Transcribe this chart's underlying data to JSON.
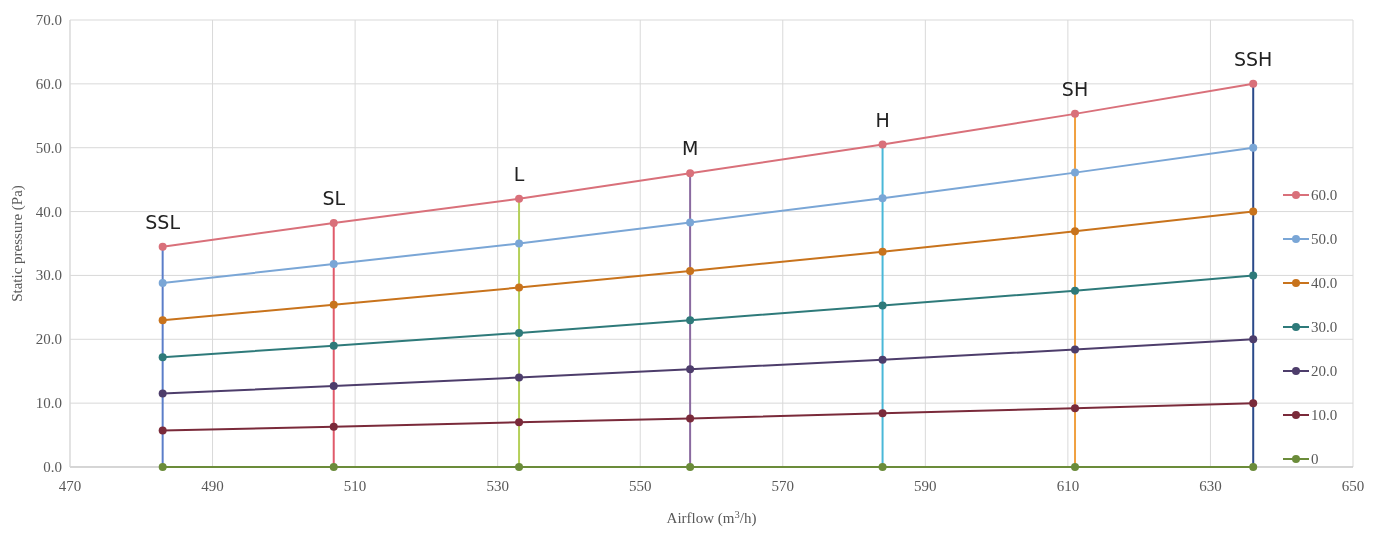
{
  "chart_data": {
    "type": "line",
    "xlabel": "Airflow (m$^{3}$/h)",
    "ylabel": "Static pressure (Pa)",
    "x": [
      483,
      507,
      533,
      557,
      584,
      611,
      636
    ],
    "xlim": [
      470,
      650
    ],
    "xticks": [
      470,
      490,
      510,
      530,
      550,
      570,
      590,
      610,
      630,
      650
    ],
    "ylim": [
      0,
      70
    ],
    "yticks": [
      {
        "value": 0,
        "label": "0.0"
      },
      {
        "value": 10,
        "label": "10.0"
      },
      {
        "value": 20,
        "label": "20.0"
      },
      {
        "value": 30,
        "label": "30.0"
      },
      {
        "value": 40,
        "label": "40.0"
      },
      {
        "value": 50,
        "label": "50.0"
      },
      {
        "value": 60,
        "label": "60.0"
      },
      {
        "value": 70,
        "label": "70.0"
      }
    ],
    "grid": true,
    "legend": "right",
    "marker": "circle",
    "series": [
      {
        "type": "line",
        "marker": "none",
        "color": "#5b7ec9",
        "x": [
          483,
          483
        ],
        "values": [
          0,
          34.5
        ]
      },
      {
        "type": "line",
        "marker": "none",
        "color": "#e05a6a",
        "x": [
          507,
          507
        ],
        "values": [
          0,
          38.2
        ]
      },
      {
        "type": "line",
        "marker": "none",
        "color": "#b5d05a",
        "x": [
          533,
          533
        ],
        "values": [
          0,
          42
        ]
      },
      {
        "type": "line",
        "marker": "none",
        "color": "#8a6aa0",
        "x": [
          557,
          557
        ],
        "values": [
          0,
          46
        ]
      },
      {
        "type": "line",
        "marker": "none",
        "color": "#4ab8d8",
        "x": [
          584,
          584
        ],
        "values": [
          0,
          50.5
        ]
      },
      {
        "type": "line",
        "marker": "none",
        "color": "#f0a040",
        "x": [
          611,
          611
        ],
        "values": [
          0,
          55.3
        ]
      },
      {
        "type": "line",
        "marker": "none",
        "color": "#2a4a8a",
        "x": [
          636,
          636
        ],
        "values": [
          0,
          60
        ]
      },
      {
        "name": "60.0",
        "color": "#d9707a",
        "values": [
          34.5,
          38.2,
          42,
          46,
          50.5,
          55.3,
          60
        ]
      },
      {
        "name": "50.0",
        "color": "#7aa6d6",
        "values": [
          28.8,
          31.8,
          35,
          38.3,
          42.1,
          46.1,
          50
        ]
      },
      {
        "name": "40.0",
        "color": "#c8731c",
        "values": [
          23,
          25.4,
          28.1,
          30.7,
          33.7,
          36.9,
          40
        ]
      },
      {
        "name": "30.0",
        "color": "#2e7a7a",
        "values": [
          17.2,
          19,
          21,
          23,
          25.3,
          27.6,
          30
        ]
      },
      {
        "name": "20.0",
        "color": "#4d3d6b",
        "values": [
          11.5,
          12.7,
          14,
          15.3,
          16.8,
          18.4,
          20
        ]
      },
      {
        "name": "10.0",
        "color": "#7a2a3a",
        "values": [
          5.7,
          6.3,
          7,
          7.6,
          8.4,
          9.2,
          10
        ]
      },
      {
        "name": "0",
        "color": "#6b8c3a",
        "values": [
          0,
          0,
          0,
          0,
          0,
          0,
          0
        ]
      }
    ],
    "annotations": [
      {
        "text": "SSL",
        "x": 483,
        "y": 34.5
      },
      {
        "text": "SL",
        "x": 507,
        "y": 38.2
      },
      {
        "text": "L",
        "x": 533,
        "y": 42
      },
      {
        "text": "M",
        "x": 557,
        "y": 46
      },
      {
        "text": "H",
        "x": 584,
        "y": 50.5
      },
      {
        "text": "SH",
        "x": 611,
        "y": 55.3
      },
      {
        "text": "SSH",
        "x": 636,
        "y": 60
      }
    ]
  }
}
